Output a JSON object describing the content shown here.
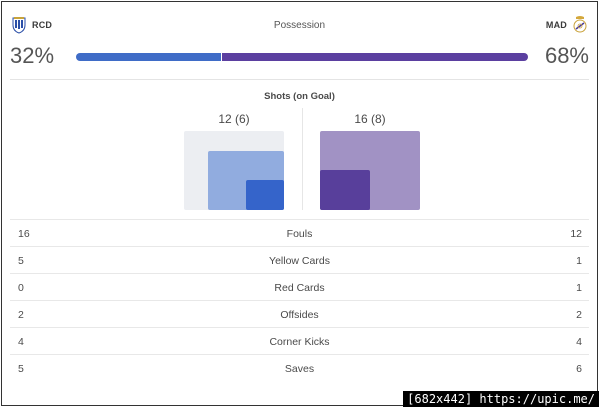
{
  "header": {
    "home_abbrev": "RCD",
    "away_abbrev": "MAD",
    "home_crest_icon": "espanyol-crest-icon",
    "away_crest_icon": "real-madrid-crest-icon",
    "possession_title": "Possession",
    "home_possession": "32%",
    "away_possession": "68%",
    "home_possession_value": 32,
    "away_possession_value": 68
  },
  "colors": {
    "home": "#3f6cc7",
    "home_light": "#91acdf",
    "away": "#5b3fa0",
    "away_light": "#a192c4"
  },
  "shots": {
    "title": "Shots (on Goal)",
    "home_label": "12 (6)",
    "away_label": "16 (8)",
    "home_total": 12,
    "home_on_goal": 6,
    "away_total": 16,
    "away_on_goal": 8
  },
  "stats": [
    {
      "label": "Fouls",
      "home": "16",
      "away": "12"
    },
    {
      "label": "Yellow Cards",
      "home": "5",
      "away": "1"
    },
    {
      "label": "Red Cards",
      "home": "0",
      "away": "1"
    },
    {
      "label": "Offsides",
      "home": "2",
      "away": "2"
    },
    {
      "label": "Corner Kicks",
      "home": "4",
      "away": "4"
    },
    {
      "label": "Saves",
      "home": "5",
      "away": "6"
    }
  ],
  "watermark": "[682x442] https://upic.me/"
}
